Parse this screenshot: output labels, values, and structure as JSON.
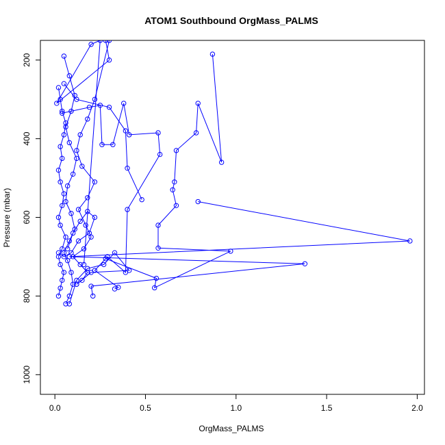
{
  "chart_data": {
    "type": "line",
    "title": "ATOM1 Southbound OrgMass_PALMS",
    "xlabel": "OrgMass_PALMS",
    "ylabel": "Pressure (mbar)",
    "xlim": [
      -0.08,
      2.04
    ],
    "ylim": [
      1050,
      150
    ],
    "y_axis_inverted": true,
    "x_ticks": [
      0.0,
      0.5,
      1.0,
      1.5,
      2.0
    ],
    "x_tick_labels": [
      "0.0",
      "0.5",
      "1.0",
      "1.5",
      "2.0"
    ],
    "y_ticks": [
      200,
      400,
      600,
      800,
      1000
    ],
    "y_tick_labels": [
      "200",
      "400",
      "600",
      "800",
      "1000"
    ],
    "grid": false,
    "legend": "none",
    "series_color": "#0000ff",
    "marker": "open-circle",
    "series": [
      {
        "x": [
          0.02,
          0.03,
          0.04,
          0.05,
          0.03,
          0.02,
          0.04,
          0.06,
          0.03,
          0.02,
          0.04,
          0.05,
          0.03,
          0.02,
          0.04,
          0.03,
          0.05,
          0.06,
          0.04,
          0.03,
          0.02
        ],
        "y": [
          800,
          780,
          760,
          740,
          720,
          700,
          680,
          650,
          620,
          600,
          570,
          540,
          510,
          480,
          450,
          420,
          390,
          360,
          330,
          300,
          270
        ]
      },
      {
        "x": [
          0.06,
          0.08,
          0.1,
          0.09,
          0.07,
          0.05,
          0.08,
          0.11,
          0.09,
          0.06,
          0.07,
          0.1,
          0.12,
          0.08,
          0.06,
          0.09,
          0.11,
          0.08,
          0.05
        ],
        "y": [
          820,
          800,
          770,
          740,
          710,
          690,
          660,
          630,
          590,
          560,
          520,
          490,
          450,
          410,
          370,
          330,
          290,
          240,
          190
        ]
      },
      {
        "x": [
          0.12,
          0.15,
          0.18,
          0.14,
          0.1,
          0.16,
          0.2,
          0.17,
          0.13,
          0.18,
          0.22,
          0.15,
          0.12,
          0.14,
          0.18,
          0.22,
          0.3
        ],
        "y": [
          770,
          760,
          740,
          720,
          700,
          680,
          650,
          620,
          580,
          550,
          510,
          470,
          430,
          390,
          350,
          300,
          150
        ]
      },
      {
        "x": [
          0.33,
          0.35,
          0.22,
          0.28,
          0.56,
          0.55,
          0.97,
          0.57,
          0.57,
          0.67,
          0.65,
          0.66,
          0.67,
          0.78,
          0.79,
          0.92,
          0.87
        ],
        "y": [
          782,
          778,
          735,
          705,
          755,
          779,
          686,
          678,
          620,
          570,
          530,
          510,
          430,
          385,
          310,
          460,
          185
        ]
      },
      {
        "x": [
          0.79,
          1.96,
          0.08,
          1.38,
          0.2,
          0.21
        ],
        "y": [
          560,
          660,
          700,
          718,
          775,
          800
        ]
      },
      {
        "x": [
          0.29,
          0.39,
          0.4,
          0.58,
          0.57,
          0.41,
          0.38,
          0.32,
          0.26,
          0.25,
          0.19,
          0.04
        ],
        "y": [
          700,
          740,
          580,
          440,
          385,
          390,
          310,
          415,
          415,
          315,
          320,
          335
        ]
      },
      {
        "x": [
          0.48,
          0.4,
          0.39,
          0.3,
          0.12,
          0.05
        ],
        "y": [
          555,
          475,
          380,
          320,
          300,
          260
        ]
      },
      {
        "x": [
          0.28,
          0.3,
          0.01,
          0.2,
          0.25,
          0.16
        ],
        "y": [
          150,
          200,
          310,
          160,
          150,
          720
        ]
      },
      {
        "x": [
          0.08,
          0.12,
          0.18,
          0.27,
          0.33,
          0.41,
          0.2,
          0.12
        ],
        "y": [
          820,
          760,
          730,
          720,
          690,
          735,
          740,
          770
        ]
      },
      {
        "x": [
          0.02,
          0.05,
          0.09,
          0.13,
          0.19,
          0.22,
          0.18,
          0.14,
          0.1,
          0.07
        ],
        "y": [
          690,
          700,
          690,
          660,
          640,
          600,
          585,
          610,
          640,
          680
        ]
      }
    ]
  }
}
